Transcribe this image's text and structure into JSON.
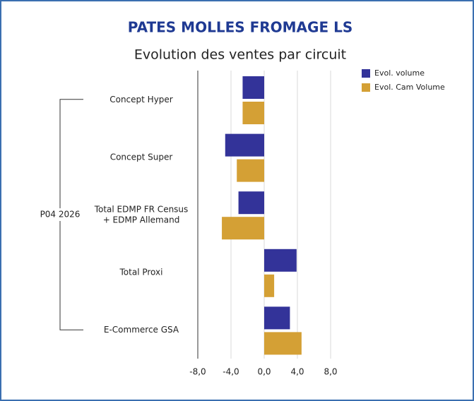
{
  "chart_data": {
    "type": "bar",
    "orientation": "horizontal",
    "title": "PATES MOLLES FROMAGE LS",
    "subtitle": "Evolution des ventes par circuit",
    "group_label": "P04 2026",
    "categories": [
      "Concept Hyper",
      "Concept Super",
      "Total EDMP FR Census + EDMP Allemand",
      "Total Proxi",
      "E-Commerce GSA"
    ],
    "series": [
      {
        "name": "Evol. volume",
        "color": "#333399",
        "values": [
          -2.6,
          -4.7,
          -3.1,
          3.9,
          3.1
        ]
      },
      {
        "name": "Evol. Cam Volume",
        "color": "#d4a035",
        "values": [
          -2.6,
          -3.3,
          -5.1,
          1.2,
          4.5
        ]
      }
    ],
    "xlim": [
      -8,
      8
    ],
    "xticks": [
      {
        "value": -8,
        "label": "-8,0"
      },
      {
        "value": -4,
        "label": "-4,0"
      },
      {
        "value": 0,
        "label": "0,0"
      },
      {
        "value": 4,
        "label": "4,0"
      },
      {
        "value": 8,
        "label": "8,0"
      }
    ],
    "grid": true,
    "legend": "top-right"
  }
}
